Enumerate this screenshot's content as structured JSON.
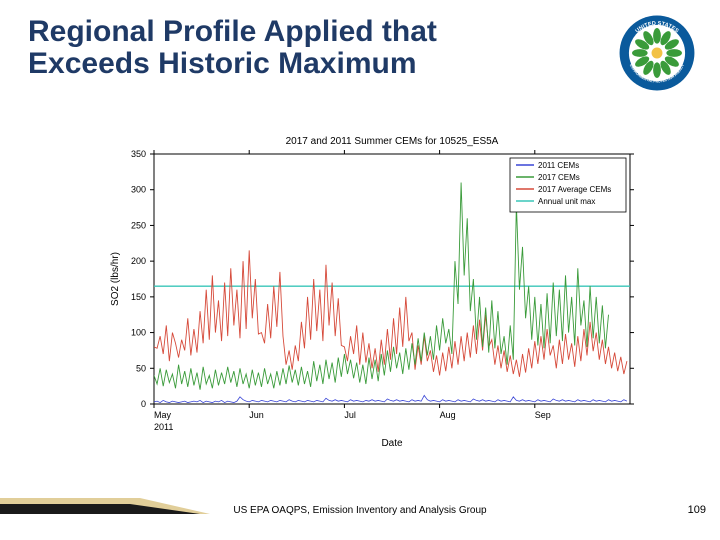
{
  "title_line1": "Regional Profile Applied that",
  "title_line2": "Exceeds Historic Maximum",
  "title_color": "#1f3a66",
  "title_fontsize": 30,
  "footer_text": "US EPA OAQPS, Emission Inventory and Analysis Group",
  "footer_fontsize": 10,
  "page_number": "109",
  "page_number_fontsize": 11,
  "logo": {
    "outer_ring": "#0a5a9c",
    "inner_ring": "#ffffff",
    "flower_color": "#3a9b3a",
    "center_color": "#f2c245",
    "text_top": "UNITED STATES",
    "text_bottom": "ENVIRONMENTAL PROTECTION AGENCY"
  },
  "accent": {
    "glow": "#c9a646",
    "dark": "#1a1a1a"
  },
  "chart": {
    "type": "line",
    "title": "2017 and 2011 Summer CEMs for 10525_ES5A",
    "title_fontsize": 10,
    "title_color": "#000000",
    "plot_bg": "#ffffff",
    "border_color": "#000000",
    "xlabel": "Date",
    "ylabel": "SO2 (lbs/hr)",
    "label_fontsize": 10,
    "tick_fontsize": 9,
    "tick_color": "#000000",
    "ylim": [
      0,
      350
    ],
    "yticks": [
      0,
      50,
      100,
      150,
      200,
      250,
      300,
      350
    ],
    "xlim": [
      0,
      155
    ],
    "xticks": [
      0,
      31,
      62,
      93,
      124
    ],
    "xticklabels": [
      "May",
      "Jun",
      "Jul",
      "Aug",
      "Sep"
    ],
    "x_year_label": "2011",
    "legend": {
      "border": "#000000",
      "bg": "#ffffff",
      "fontsize": 8,
      "items": [
        {
          "label": "2011 CEMs",
          "color": "#3a46d6"
        },
        {
          "label": "2017 CEMs",
          "color": "#3a9b3a"
        },
        {
          "label": "2017 Average CEMs",
          "color": "#d64a3a"
        },
        {
          "label": "Annual unit max",
          "color": "#3ac6b8"
        }
      ]
    },
    "annual_max": {
      "value": 165,
      "color": "#3ac6b8",
      "linewidth": 1.4
    },
    "series_red": {
      "color": "#d64a3a",
      "linewidth": 0.9,
      "data": [
        80,
        78,
        95,
        70,
        110,
        60,
        100,
        85,
        65,
        90,
        75,
        120,
        68,
        105,
        72,
        130,
        85,
        160,
        90,
        180,
        100,
        145,
        88,
        170,
        95,
        190,
        110,
        160,
        92,
        200,
        105,
        215,
        120,
        175,
        98,
        100,
        85,
        140,
        92,
        165,
        108,
        185,
        95,
        55,
        75,
        48,
        82,
        60,
        115,
        78,
        150,
        90,
        175,
        102,
        160,
        88,
        195,
        110,
        170,
        95,
        148,
        82,
        80,
        60,
        95,
        70,
        110,
        55,
        100,
        58,
        85,
        50,
        78,
        45,
        90,
        55,
        105,
        62,
        120,
        70,
        135,
        80,
        150,
        88,
        100,
        48,
        82,
        55,
        95,
        60,
        75,
        45,
        68,
        40,
        72,
        46,
        80,
        50,
        88,
        55,
        95,
        60,
        100,
        65,
        110,
        70,
        118,
        75,
        125,
        80,
        90,
        55,
        82,
        50,
        75,
        45,
        68,
        42,
        62,
        38,
        70,
        44,
        78,
        50,
        88,
        56,
        95,
        62,
        105,
        68,
        82,
        50,
        90,
        56,
        98,
        62,
        85,
        52,
        95,
        60,
        105,
        68,
        115,
        74,
        100,
        62,
        90,
        56,
        80,
        50,
        72,
        46,
        66,
        42,
        60
      ]
    },
    "series_green": {
      "color": "#3a9b3a",
      "linewidth": 0.9,
      "data": [
        40,
        28,
        50,
        25,
        48,
        30,
        42,
        22,
        55,
        28,
        46,
        24,
        50,
        26,
        44,
        20,
        52,
        28,
        40,
        22,
        48,
        26,
        44,
        28,
        52,
        30,
        46,
        24,
        50,
        28,
        42,
        22,
        48,
        26,
        44,
        24,
        50,
        28,
        42,
        22,
        46,
        26,
        50,
        28,
        54,
        30,
        48,
        26,
        52,
        28,
        46,
        24,
        60,
        32,
        55,
        28,
        62,
        35,
        58,
        30,
        65,
        38,
        70,
        42,
        62,
        36,
        58,
        30,
        55,
        28,
        65,
        35,
        62,
        32,
        70,
        40,
        75,
        45,
        80,
        50,
        72,
        42,
        78,
        48,
        85,
        55,
        92,
        60,
        100,
        68,
        95,
        62,
        110,
        75,
        120,
        85,
        105,
        70,
        200,
        140,
        310,
        180,
        260,
        130,
        175,
        90,
        150,
        80,
        135,
        72,
        145,
        78,
        130,
        70,
        95,
        55,
        110,
        62,
        280,
        160,
        220,
        120,
        165,
        90,
        150,
        82,
        140,
        78,
        155,
        85,
        170,
        95,
        160,
        88,
        180,
        100,
        150,
        82,
        190,
        110,
        145,
        80,
        165,
        92,
        150,
        85,
        138,
        78,
        125
      ]
    },
    "series_blue": {
      "color": "#3a46d6",
      "linewidth": 0.8,
      "data": [
        3,
        4,
        2,
        5,
        3,
        2,
        4,
        3,
        2,
        3,
        4,
        2,
        3,
        4,
        3,
        5,
        2,
        4,
        3,
        2,
        4,
        3,
        5,
        2,
        4,
        3,
        2,
        4,
        10,
        6,
        4,
        3,
        5,
        4,
        3,
        5,
        4,
        3,
        5,
        4,
        3,
        5,
        4,
        3,
        6,
        4,
        3,
        5,
        4,
        3,
        5,
        4,
        3,
        5,
        4,
        3,
        8,
        5,
        4,
        6,
        4,
        5,
        4,
        3,
        6,
        4,
        5,
        4,
        3,
        5,
        4,
        6,
        4,
        5,
        4,
        3,
        7,
        5,
        4,
        6,
        4,
        5,
        4,
        3,
        6,
        4,
        5,
        4,
        12,
        6,
        4,
        5,
        4,
        3,
        6,
        4,
        5,
        4,
        3,
        6,
        4,
        5,
        4,
        3,
        7,
        5,
        4,
        6,
        4,
        5,
        4,
        3,
        6,
        4,
        5,
        4,
        3,
        10,
        5,
        4,
        6,
        4,
        5,
        4,
        3,
        6,
        4,
        5,
        4,
        3,
        7,
        5,
        4,
        6,
        4,
        5,
        4,
        3,
        6,
        4,
        5,
        4,
        3,
        6,
        4,
        5,
        4,
        3,
        6,
        4,
        5,
        4,
        3,
        6,
        4
      ]
    }
  }
}
